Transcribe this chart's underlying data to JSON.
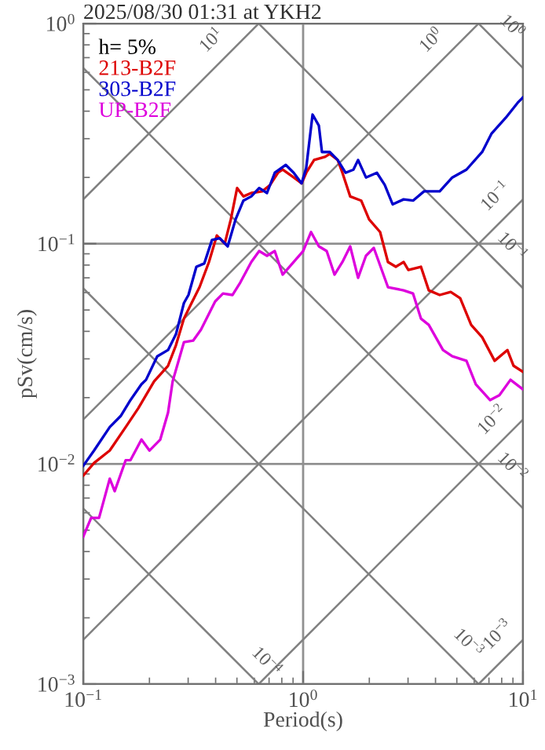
{
  "chart_data": {
    "type": "line",
    "title": "2025/08/30 01:31 at YKH2",
    "xlabel": "Period(s)",
    "ylabel": "pSv(cm/s)",
    "legend_title": "h= 5%",
    "legend": "top left",
    "log": "xy",
    "grid": true,
    "marker": "none",
    "line_style": "solid",
    "xlim": [
      0.1,
      10
    ],
    "ylim": [
      0.001,
      1
    ],
    "xticks": [
      {
        "value": 0.1,
        "label": "10$^{−1}$"
      },
      {
        "value": 1,
        "label": "10$^{0}$"
      },
      {
        "value": 10,
        "label": "10$^{1}$"
      }
    ],
    "yticks": [
      {
        "value": 0.001,
        "label": "10$^{−3}$"
      },
      {
        "value": 0.01,
        "label": "10$^{−2}$"
      },
      {
        "value": 0.1,
        "label": "10$^{−1}$"
      },
      {
        "value": 1,
        "label": "10$^{0}$"
      }
    ],
    "series": [
      {
        "color": "#808080",
        "x": [
          0.1,
          0.628
        ],
        "values": [
          0.159,
          1
        ]
      },
      {
        "color": "#808080",
        "x": [
          0.1,
          6.28
        ],
        "values": [
          0.0159,
          1
        ]
      },
      {
        "color": "#808080",
        "x": [
          0.1,
          10
        ],
        "values": [
          0.00159,
          0.159
        ]
      },
      {
        "color": "#808080",
        "x": [
          0.628,
          10
        ],
        "values": [
          0.001,
          0.0159
        ]
      },
      {
        "color": "#808080",
        "x": [
          6.28,
          10
        ],
        "values": [
          0.001,
          0.00159
        ]
      },
      {
        "color": "#808080",
        "x": [
          6.28,
          10
        ],
        "values": [
          1,
          0.628
        ]
      },
      {
        "color": "#808080",
        "x": [
          0.628,
          10
        ],
        "values": [
          1,
          0.0628
        ]
      },
      {
        "color": "#808080",
        "x": [
          0.1,
          10
        ],
        "values": [
          0.628,
          0.00628
        ]
      },
      {
        "color": "#808080",
        "x": [
          0.1,
          6.28
        ],
        "values": [
          0.0628,
          0.001
        ]
      },
      {
        "color": "#808080",
        "x": [
          0.1,
          0.628
        ],
        "values": [
          0.00628,
          0.001
        ]
      },
      {
        "name": "213-B2F",
        "color": "#dd0000",
        "x": [
          0.1,
          0.112,
          0.132,
          0.156,
          0.178,
          0.21,
          0.243,
          0.264,
          0.287,
          0.311,
          0.338,
          0.373,
          0.405,
          0.44,
          0.469,
          0.501,
          0.535,
          0.581,
          0.652,
          0.708,
          0.768,
          0.807,
          0.906,
          0.984,
          1.033,
          1.122,
          1.259,
          1.322,
          1.436,
          1.509,
          1.637,
          1.837,
          1.995,
          2.239,
          2.431,
          2.64,
          2.864,
          3.01,
          3.434,
          3.728,
          4.18,
          4.69,
          5.18,
          5.81,
          6.52,
          7.43,
          8.49,
          9.06,
          10
        ],
        "values": [
          0.00885,
          0.0101,
          0.0115,
          0.0147,
          0.0179,
          0.0237,
          0.0279,
          0.0346,
          0.0457,
          0.0538,
          0.0635,
          0.0826,
          0.109,
          0.1,
          0.129,
          0.179,
          0.164,
          0.17,
          0.173,
          0.185,
          0.21,
          0.217,
          0.2,
          0.188,
          0.21,
          0.24,
          0.248,
          0.256,
          0.24,
          0.21,
          0.164,
          0.157,
          0.129,
          0.113,
          0.0826,
          0.0786,
          0.0826,
          0.076,
          0.0786,
          0.0614,
          0.0585,
          0.0604,
          0.0566,
          0.0428,
          0.0376,
          0.0294,
          0.0329,
          0.0279,
          0.0262
        ]
      },
      {
        "name": "303-B2F",
        "color": "#0000cc",
        "x": [
          0.1,
          0.112,
          0.132,
          0.148,
          0.164,
          0.184,
          0.193,
          0.217,
          0.243,
          0.264,
          0.287,
          0.301,
          0.327,
          0.355,
          0.385,
          0.418,
          0.454,
          0.493,
          0.535,
          0.581,
          0.631,
          0.685,
          0.743,
          0.834,
          0.906,
          0.984,
          1.033,
          1.104,
          1.179,
          1.218,
          1.322,
          1.436,
          1.559,
          1.693,
          1.778,
          1.931,
          2.165,
          2.35,
          2.553,
          2.864,
          3.162,
          3.548,
          4.18,
          4.77,
          5.53,
          6.52,
          7.2,
          8.34,
          9.52,
          10
        ],
        "values": [
          0.0098,
          0.0115,
          0.0147,
          0.0165,
          0.0195,
          0.023,
          0.0241,
          0.0308,
          0.0329,
          0.0388,
          0.0538,
          0.0585,
          0.0786,
          0.0813,
          0.104,
          0.106,
          0.0973,
          0.129,
          0.157,
          0.164,
          0.179,
          0.17,
          0.21,
          0.228,
          0.21,
          0.188,
          0.221,
          0.386,
          0.344,
          0.261,
          0.261,
          0.24,
          0.21,
          0.217,
          0.24,
          0.2,
          0.21,
          0.185,
          0.151,
          0.159,
          0.157,
          0.173,
          0.173,
          0.2,
          0.217,
          0.261,
          0.317,
          0.373,
          0.44,
          0.462
        ]
      },
      {
        "name": "UP-B2F",
        "color": "#dd00dd",
        "x": [
          0.1,
          0.1086,
          0.118,
          0.132,
          0.139,
          0.156,
          0.164,
          0.184,
          0.2,
          0.224,
          0.243,
          0.255,
          0.287,
          0.316,
          0.343,
          0.398,
          0.432,
          0.477,
          0.518,
          0.581,
          0.631,
          0.685,
          0.743,
          0.807,
          0.906,
          1,
          1.086,
          1.179,
          1.28,
          1.389,
          1.509,
          1.637,
          1.778,
          1.931,
          2.096,
          2.431,
          2.864,
          3.162,
          3.434,
          3.728,
          4.325,
          4.77,
          5.53,
          6.1,
          7.08,
          7.81,
          8.77,
          10
        ],
        "values": [
          0.00467,
          0.00569,
          0.00569,
          0.00857,
          0.00752,
          0.0104,
          0.0104,
          0.0129,
          0.0115,
          0.0129,
          0.0171,
          0.0237,
          0.0357,
          0.0363,
          0.0407,
          0.0547,
          0.0594,
          0.0585,
          0.0667,
          0.0826,
          0.0926,
          0.0882,
          0.0926,
          0.0724,
          0.0826,
          0.0926,
          0.113,
          0.0973,
          0.0926,
          0.0724,
          0.0826,
          0.0973,
          0.07,
          0.0882,
          0.0957,
          0.0635,
          0.0614,
          0.0594,
          0.0457,
          0.0428,
          0.0329,
          0.0308,
          0.0294,
          0.023,
          0.0195,
          0.0205,
          0.0241,
          0.0218
        ]
      }
    ],
    "annotations": [
      {
        "text": "10$^{1}$",
        "x": 0.45,
        "y": 0.716
      },
      {
        "text": "10$^{0}$",
        "x": 4.5,
        "y": 0.716
      },
      {
        "text": "10$^{−1}$",
        "x": 8.8,
        "y": 0.14
      },
      {
        "text": "10$^{−2}$",
        "x": 8.5,
        "y": 0.0135
      },
      {
        "text": "10$^{−3}$",
        "x": 9,
        "y": 0.00143
      },
      {
        "text": "10$^{0}$",
        "x": 7.6,
        "y": 0.826
      },
      {
        "text": "10$^{−1}$",
        "x": 7.6,
        "y": 0.0826
      },
      {
        "text": "10$^{−2}$",
        "x": 7.6,
        "y": 0.00826
      },
      {
        "text": "10$^{−3}$",
        "x": 4.8,
        "y": 0.00131
      },
      {
        "text": "10$^{−4}$",
        "x": 0.58,
        "y": 0.00108
      }
    ]
  }
}
